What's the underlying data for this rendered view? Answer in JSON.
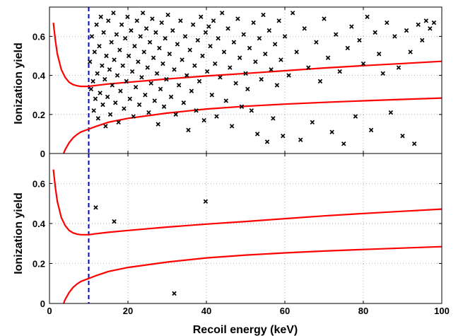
{
  "chart_data": {
    "type": "scatter",
    "xlabel": "Recoil energy (keV)",
    "ylabel": "Ionization yield",
    "xlim": [
      0,
      100
    ],
    "ylim": [
      0,
      0.75
    ],
    "x_ticks": [
      0,
      20,
      40,
      60,
      80,
      100
    ],
    "y_ticks": [
      0,
      0.2,
      0.4,
      0.6
    ],
    "x_tick_labels": [
      "0",
      "20",
      "40",
      "60",
      "80",
      "100"
    ],
    "y_tick_labels": [
      "0",
      "0.2",
      "0.4",
      "0.6"
    ],
    "grid": true,
    "threshold_line": {
      "x": 10,
      "color": "#0000dd",
      "style": "dashed"
    },
    "colors": {
      "points": "#000000",
      "bands": "#ff0000",
      "threshold": "#0000dd"
    },
    "bands": {
      "upper": [
        [
          1,
          0.67
        ],
        [
          1.5,
          0.58
        ],
        [
          2,
          0.51
        ],
        [
          3,
          0.43
        ],
        [
          4,
          0.39
        ],
        [
          5,
          0.365
        ],
        [
          6,
          0.353
        ],
        [
          7,
          0.347
        ],
        [
          8,
          0.344
        ],
        [
          9,
          0.344
        ],
        [
          10,
          0.344
        ],
        [
          12,
          0.349
        ],
        [
          15,
          0.356
        ],
        [
          20,
          0.365
        ],
        [
          30,
          0.382
        ],
        [
          40,
          0.397
        ],
        [
          50,
          0.41
        ],
        [
          60,
          0.424
        ],
        [
          70,
          0.438
        ],
        [
          80,
          0.45
        ],
        [
          90,
          0.461
        ],
        [
          100,
          0.472
        ]
      ],
      "lower": [
        [
          3.6,
          0.0
        ],
        [
          4,
          0.02
        ],
        [
          5,
          0.055
        ],
        [
          6,
          0.08
        ],
        [
          7,
          0.097
        ],
        [
          8,
          0.11
        ],
        [
          10,
          0.125
        ],
        [
          12,
          0.14
        ],
        [
          15,
          0.16
        ],
        [
          20,
          0.18
        ],
        [
          30,
          0.207
        ],
        [
          40,
          0.228
        ],
        [
          50,
          0.242
        ],
        [
          60,
          0.253
        ],
        [
          70,
          0.262
        ],
        [
          80,
          0.27
        ],
        [
          90,
          0.277
        ],
        [
          100,
          0.284
        ]
      ]
    },
    "panels": [
      {
        "name": "top",
        "points": [
          [
            10.3,
            0.47
          ],
          [
            10.6,
            0.33
          ],
          [
            10.8,
            0.6
          ],
          [
            11.1,
            0.37
          ],
          [
            11.3,
            0.22
          ],
          [
            11.5,
            0.52
          ],
          [
            11.7,
            0.28
          ],
          [
            12.0,
            0.66
          ],
          [
            12.2,
            0.41
          ],
          [
            12.4,
            0.18
          ],
          [
            12.7,
            0.55
          ],
          [
            12.9,
            0.31
          ],
          [
            13.1,
            0.7
          ],
          [
            13.4,
            0.45
          ],
          [
            13.6,
            0.25
          ],
          [
            13.8,
            0.62
          ],
          [
            14.1,
            0.38
          ],
          [
            14.3,
            0.14
          ],
          [
            14.5,
            0.5
          ],
          [
            14.8,
            0.29
          ],
          [
            15.0,
            0.68
          ],
          [
            15.3,
            0.43
          ],
          [
            15.5,
            0.2
          ],
          [
            15.8,
            0.57
          ],
          [
            16.0,
            0.35
          ],
          [
            16.3,
            0.72
          ],
          [
            16.5,
            0.48
          ],
          [
            16.8,
            0.26
          ],
          [
            17.1,
            0.61
          ],
          [
            17.3,
            0.4
          ],
          [
            17.6,
            0.16
          ],
          [
            17.9,
            0.53
          ],
          [
            18.1,
            0.32
          ],
          [
            18.4,
            0.66
          ],
          [
            18.7,
            0.45
          ],
          [
            19.0,
            0.23
          ],
          [
            19.3,
            0.59
          ],
          [
            19.6,
            0.37
          ],
          [
            19.9,
            0.7
          ],
          [
            20.2,
            0.5
          ],
          [
            20.5,
            0.28
          ],
          [
            20.8,
            0.63
          ],
          [
            21.1,
            0.42
          ],
          [
            21.4,
            0.19
          ],
          [
            21.7,
            0.55
          ],
          [
            22.0,
            0.34
          ],
          [
            22.3,
            0.68
          ],
          [
            22.6,
            0.47
          ],
          [
            22.9,
            0.25
          ],
          [
            23.2,
            0.6
          ],
          [
            23.5,
            0.39
          ],
          [
            23.8,
            0.72
          ],
          [
            24.1,
            0.52
          ],
          [
            24.4,
            0.3
          ],
          [
            24.7,
            0.64
          ],
          [
            25.0,
            0.44
          ],
          [
            25.3,
            0.21
          ],
          [
            25.6,
            0.57
          ],
          [
            25.9,
            0.36
          ],
          [
            26.2,
            0.69
          ],
          [
            26.5,
            0.49
          ],
          [
            26.8,
            0.27
          ],
          [
            27.1,
            0.62
          ],
          [
            27.4,
            0.41
          ],
          [
            27.7,
            0.15
          ],
          [
            28.0,
            0.54
          ],
          [
            28.3,
            0.33
          ],
          [
            28.6,
            0.67
          ],
          [
            28.9,
            0.46
          ],
          [
            29.2,
            0.24
          ],
          [
            29.5,
            0.59
          ],
          [
            29.8,
            0.38
          ],
          [
            30.2,
            0.71
          ],
          [
            30.6,
            0.51
          ],
          [
            31.0,
            0.29
          ],
          [
            31.4,
            0.63
          ],
          [
            31.8,
            0.43
          ],
          [
            32.2,
            0.2
          ],
          [
            32.6,
            0.56
          ],
          [
            33.0,
            0.35
          ],
          [
            33.4,
            0.68
          ],
          [
            33.8,
            0.48
          ],
          [
            34.2,
            0.26
          ],
          [
            34.6,
            0.6
          ],
          [
            35.0,
            0.4
          ],
          [
            35.4,
            0.12
          ],
          [
            35.8,
            0.53
          ],
          [
            36.2,
            0.32
          ],
          [
            36.6,
            0.66
          ],
          [
            37.0,
            0.45
          ],
          [
            37.4,
            0.22
          ],
          [
            37.8,
            0.58
          ],
          [
            38.2,
            0.37
          ],
          [
            38.6,
            0.7
          ],
          [
            39.0,
            0.5
          ],
          [
            39.4,
            0.17
          ],
          [
            39.8,
            0.62
          ],
          [
            40.2,
            0.42
          ],
          [
            40.6,
            0.65
          ],
          [
            41.0,
            0.55
          ],
          [
            41.4,
            0.3
          ],
          [
            41.8,
            0.68
          ],
          [
            42.2,
            0.46
          ],
          [
            42.6,
            0.19
          ],
          [
            43.0,
            0.59
          ],
          [
            43.5,
            0.39
          ],
          [
            44.0,
            0.72
          ],
          [
            44.5,
            0.52
          ],
          [
            45.0,
            0.27
          ],
          [
            45.5,
            0.64
          ],
          [
            46.0,
            0.44
          ],
          [
            46.5,
            0.14
          ],
          [
            47.0,
            0.57
          ],
          [
            47.5,
            0.36
          ],
          [
            48.0,
            0.69
          ],
          [
            48.5,
            0.49
          ],
          [
            49.0,
            0.24
          ],
          [
            49.5,
            0.61
          ],
          [
            50.0,
            0.41
          ],
          [
            50.5,
            0.33
          ],
          [
            51.0,
            0.54
          ],
          [
            51.5,
            0.22
          ],
          [
            52.0,
            0.67
          ],
          [
            52.5,
            0.47
          ],
          [
            53.0,
            0.1
          ],
          [
            53.5,
            0.59
          ],
          [
            54.0,
            0.38
          ],
          [
            54.5,
            0.71
          ],
          [
            55.0,
            0.51
          ],
          [
            55.5,
            0.06
          ],
          [
            56.0,
            0.63
          ],
          [
            56.5,
            0.43
          ],
          [
            57.0,
            0.18
          ],
          [
            57.5,
            0.56
          ],
          [
            58.0,
            0.35
          ],
          [
            58.5,
            0.68
          ],
          [
            59.0,
            0.48
          ],
          [
            59.5,
            0.09
          ],
          [
            60.0,
            0.6
          ],
          [
            61.0,
            0.4
          ],
          [
            62.0,
            0.72
          ],
          [
            63.0,
            0.52
          ],
          [
            64.0,
            0.07
          ],
          [
            65.0,
            0.64
          ],
          [
            66.0,
            0.44
          ],
          [
            67.0,
            0.16
          ],
          [
            68.0,
            0.57
          ],
          [
            69.0,
            0.37
          ],
          [
            70.0,
            0.69
          ],
          [
            71.0,
            0.49
          ],
          [
            72.0,
            0.11
          ],
          [
            73.0,
            0.61
          ],
          [
            74.0,
            0.42
          ],
          [
            75.0,
            0.05
          ],
          [
            76.0,
            0.54
          ],
          [
            77.0,
            0.65
          ],
          [
            78.0,
            0.19
          ],
          [
            79.0,
            0.58
          ],
          [
            80.0,
            0.46
          ],
          [
            81.0,
            0.7
          ],
          [
            82.0,
            0.12
          ],
          [
            83.0,
            0.62
          ],
          [
            84.0,
            0.51
          ],
          [
            85.0,
            0.41
          ],
          [
            86.0,
            0.67
          ],
          [
            87.0,
            0.21
          ],
          [
            88.0,
            0.6
          ],
          [
            89.0,
            0.44
          ],
          [
            90.0,
            0.09
          ],
          [
            91.0,
            0.63
          ],
          [
            92.0,
            0.52
          ],
          [
            93.0,
            0.05
          ],
          [
            94.0,
            0.66
          ],
          [
            95.0,
            0.58
          ],
          [
            96.0,
            0.68
          ],
          [
            97.0,
            0.64
          ],
          [
            98.0,
            0.67
          ]
        ]
      },
      {
        "name": "bottom",
        "points": [
          [
            11.8,
            0.48
          ],
          [
            16.5,
            0.41
          ],
          [
            31.8,
            0.05
          ],
          [
            39.8,
            0.51
          ]
        ]
      }
    ]
  }
}
